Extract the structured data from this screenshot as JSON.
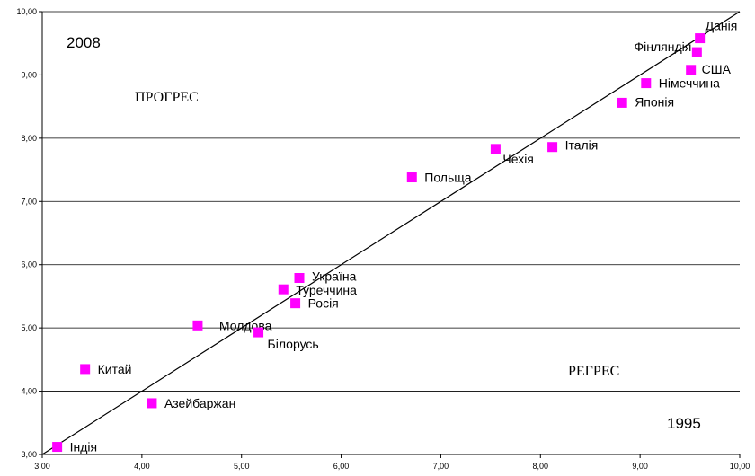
{
  "chart_data": {
    "type": "scatter",
    "xlim": [
      3,
      10
    ],
    "ylim": [
      3,
      10
    ],
    "x_ticks": [
      "3,00",
      "4,00",
      "5,00",
      "6,00",
      "7,00",
      "8,00",
      "9,00",
      "10,00"
    ],
    "y_ticks": [
      "3,00",
      "4,00",
      "5,00",
      "6,00",
      "7,00",
      "8,00",
      "9,00",
      "10,00"
    ],
    "grid": "horizontal",
    "diagonal": [
      [
        3,
        3
      ],
      [
        10,
        10
      ]
    ],
    "marker_color": "#ff00ff",
    "texts": {
      "year_y": "2008",
      "year_x": "1995",
      "progress": "ПРОГРЕС",
      "regress": "РЕГРЕС"
    },
    "points": [
      {
        "label": "Данія",
        "x": 9.6,
        "y": 9.58
      },
      {
        "label": "Фінляндія",
        "x": 9.57,
        "y": 9.36
      },
      {
        "label": "США",
        "x": 9.51,
        "y": 9.08
      },
      {
        "label": "Німеччина",
        "x": 9.06,
        "y": 8.87
      },
      {
        "label": "Японія",
        "x": 8.82,
        "y": 8.56
      },
      {
        "label": "Італія",
        "x": 8.12,
        "y": 7.86
      },
      {
        "label": "Чехія",
        "x": 7.55,
        "y": 7.83
      },
      {
        "label": "Польща",
        "x": 6.71,
        "y": 7.38
      },
      {
        "label": "Україна",
        "x": 5.58,
        "y": 5.79
      },
      {
        "label": "Туреччина",
        "x": 5.42,
        "y": 5.61
      },
      {
        "label": "Росія",
        "x": 5.54,
        "y": 5.39
      },
      {
        "label": "Молдова",
        "x": 4.56,
        "y": 5.04
      },
      {
        "label": "Білорусь",
        "x": 5.17,
        "y": 4.93
      },
      {
        "label": "Китай",
        "x": 3.43,
        "y": 4.35
      },
      {
        "label": "Азейбаржан",
        "x": 4.1,
        "y": 3.81
      },
      {
        "label": "Індія",
        "x": 3.15,
        "y": 3.12
      }
    ]
  }
}
